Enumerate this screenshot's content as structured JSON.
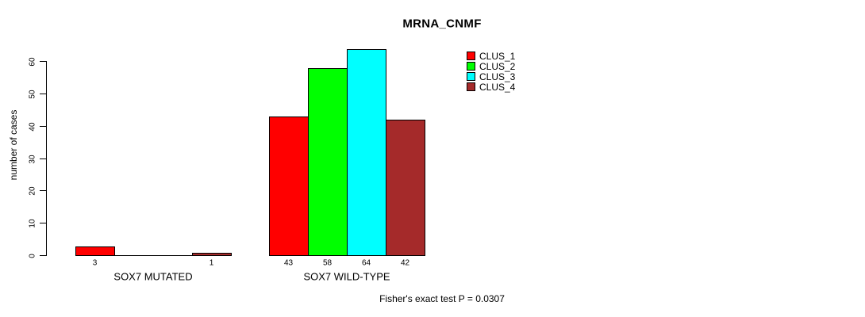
{
  "chart_data": {
    "type": "bar",
    "title": "MRNA_CNMF",
    "xlabel": "",
    "ylabel": "number of cases",
    "ylim": [
      0,
      60
    ],
    "yticks": [
      0,
      10,
      20,
      30,
      40,
      50,
      60
    ],
    "grid": false,
    "legend_position": "top-right",
    "categories": [
      "SOX7 MUTATED",
      "SOX7 WILD-TYPE"
    ],
    "series": [
      {
        "name": "CLUS_1",
        "color": "#FF0000",
        "values": [
          3,
          43
        ]
      },
      {
        "name": "CLUS_2",
        "color": "#00FF00",
        "values": [
          0,
          58
        ]
      },
      {
        "name": "CLUS_3",
        "color": "#00FFFF",
        "values": [
          0,
          64
        ]
      },
      {
        "name": "CLUS_4",
        "color": "#A52A2A",
        "values": [
          1,
          42
        ]
      }
    ],
    "bar_value_labels": "values shown under each bar; zero-value bars drawn as flat lines with no label",
    "annotation": "Fisher's exact test P = 0.0307"
  },
  "colors": {
    "background": "#FFFFFF",
    "axis": "#000000",
    "bar_border": "#000000"
  }
}
